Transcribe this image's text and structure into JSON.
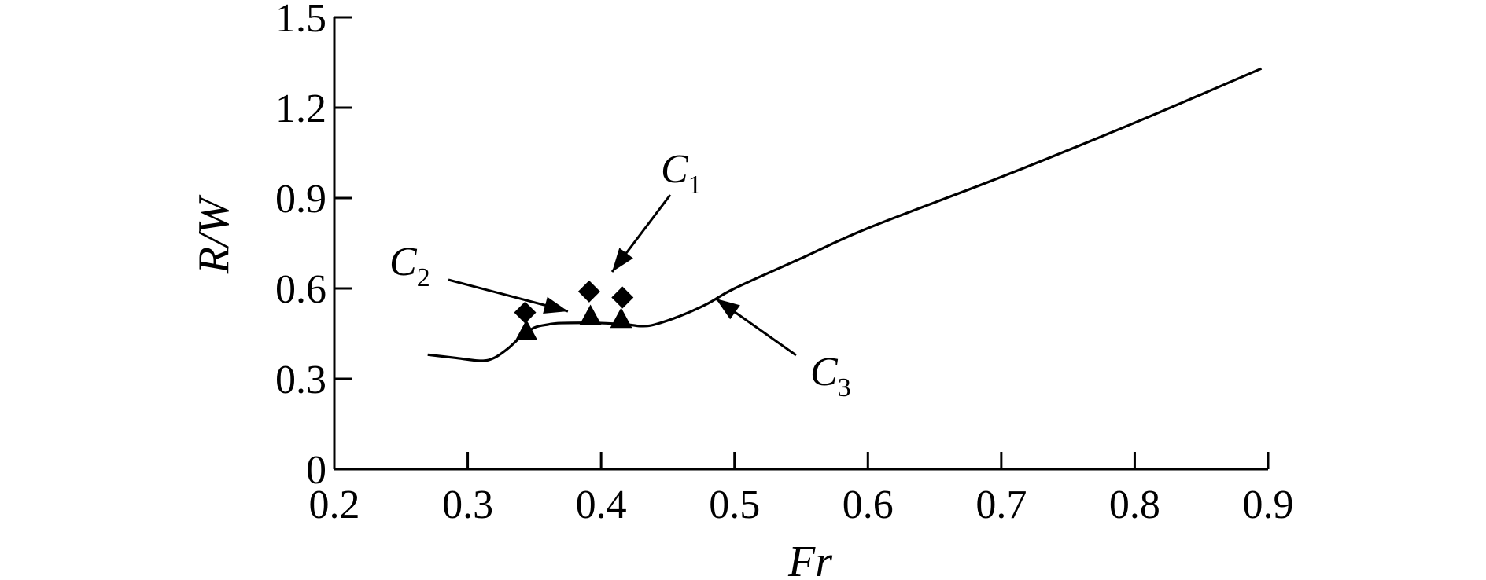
{
  "chart_data": {
    "type": "line",
    "title": "",
    "xlabel": "Fr",
    "ylabel": "R/W",
    "xlim": [
      0.2,
      0.9
    ],
    "ylim": [
      0,
      1.5
    ],
    "xticks": [
      "0.2",
      "0.3",
      "0.4",
      "0.5",
      "0.6",
      "0.7",
      "0.8",
      "0.9"
    ],
    "yticks": [
      "0",
      "0.3",
      "0.6",
      "0.9",
      "1.2",
      "1.5"
    ],
    "grid": false,
    "legend": "none",
    "series": [
      {
        "label_main": "C",
        "label_sub": "1",
        "marker": "diamond",
        "x": [
          0.343,
          0.391,
          0.416
        ],
        "y": [
          0.52,
          0.59,
          0.57
        ]
      },
      {
        "label_main": "C",
        "label_sub": "2",
        "marker": "triangle",
        "x": [
          0.344,
          0.392,
          0.415
        ],
        "y": [
          0.46,
          0.51,
          0.5
        ]
      },
      {
        "label_main": "C",
        "label_sub": "3",
        "marker": "line",
        "x": [
          0.27,
          0.29,
          0.31,
          0.32,
          0.33,
          0.34,
          0.35,
          0.36,
          0.37,
          0.4,
          0.42,
          0.43,
          0.44,
          0.46,
          0.48,
          0.5,
          0.55,
          0.6,
          0.7,
          0.8,
          0.895
        ],
        "y": [
          0.38,
          0.37,
          0.36,
          0.37,
          0.4,
          0.44,
          0.47,
          0.48,
          0.485,
          0.485,
          0.48,
          0.475,
          0.48,
          0.51,
          0.55,
          0.6,
          0.7,
          0.8,
          0.97,
          1.15,
          1.33
        ]
      }
    ]
  }
}
